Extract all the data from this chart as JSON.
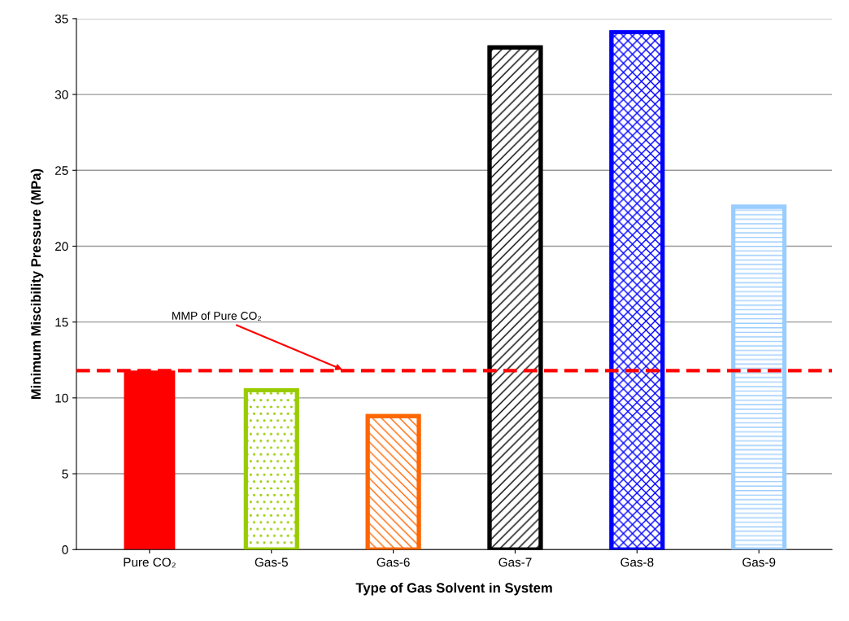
{
  "chart_data": {
    "type": "bar",
    "xlabel": "Type of Gas Solvent in System",
    "ylabel": "Minimum Miscibility Pressure (MPa)",
    "categories": [
      "Pure CO₂",
      "Gas-5",
      "Gas-6",
      "Gas-7",
      "Gas-8",
      "Gas-9"
    ],
    "values": [
      11.8,
      10.5,
      8.8,
      33.1,
      34.1,
      22.6
    ],
    "colors": [
      "#ff0000",
      "#99cc00",
      "#ff6600",
      "#000000",
      "#0000ff",
      "#99ccff"
    ],
    "ylim": [
      0,
      35
    ],
    "yticks": [
      0,
      5,
      10,
      15,
      20,
      25,
      30,
      35
    ],
    "grid": "y",
    "ref_lines": [
      {
        "axis": "y",
        "value": 11.8,
        "label": "MMP of Pure CO₂",
        "color": "#ff0000",
        "line_style": "dashed"
      }
    ]
  }
}
